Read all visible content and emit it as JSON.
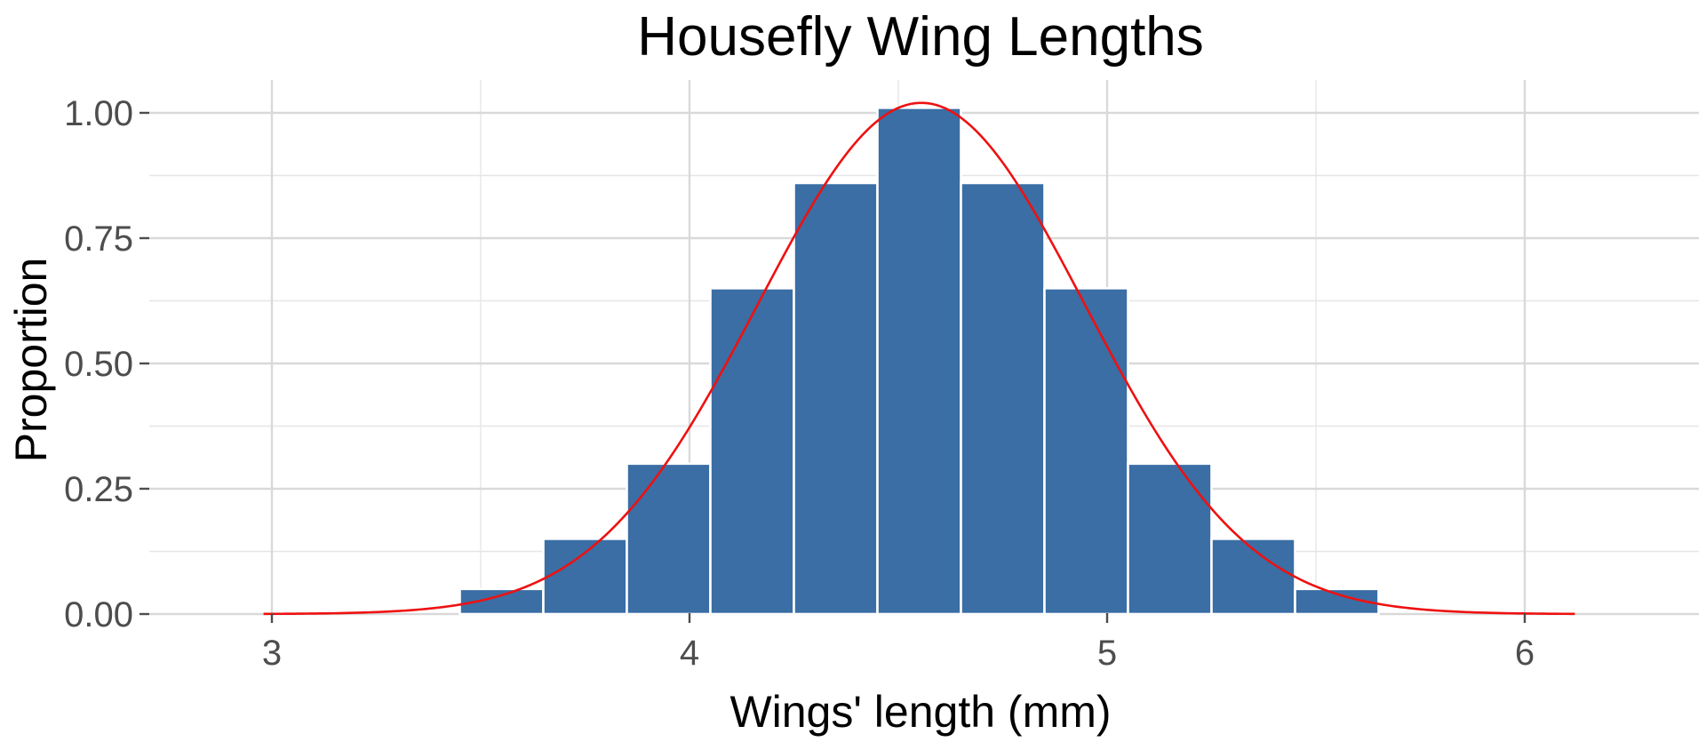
{
  "chart_data": {
    "type": "bar",
    "title": "Housefly Wing Lengths",
    "xlabel": "Wings' length (mm)",
    "ylabel": "Proportion",
    "xlim": [
      2.7,
      6.4
    ],
    "ylim": [
      0.0,
      1.05
    ],
    "x_ticks": [
      3,
      4,
      5,
      6
    ],
    "y_ticks": [
      0.0,
      0.25,
      0.5,
      0.75,
      1.0
    ],
    "y_tick_labels": [
      "0.00",
      "0.25",
      "0.50",
      "0.75",
      "1.00"
    ],
    "x_minor_ticks": [
      3.5,
      4.5,
      5.5
    ],
    "y_minor_ticks": [
      0.125,
      0.375,
      0.625,
      0.875
    ],
    "grid": true,
    "bin_width": 0.2,
    "bins": [
      {
        "center": 2.95,
        "value": 0.0
      },
      {
        "center": 3.15,
        "value": 0.0
      },
      {
        "center": 3.35,
        "value": 0.0
      },
      {
        "center": 3.55,
        "value": 0.05
      },
      {
        "center": 3.75,
        "value": 0.15
      },
      {
        "center": 3.95,
        "value": 0.3
      },
      {
        "center": 4.15,
        "value": 0.65
      },
      {
        "center": 4.35,
        "value": 0.86
      },
      {
        "center": 4.55,
        "value": 1.01
      },
      {
        "center": 4.75,
        "value": 0.86
      },
      {
        "center": 4.95,
        "value": 0.65
      },
      {
        "center": 5.15,
        "value": 0.3
      },
      {
        "center": 5.35,
        "value": 0.15
      },
      {
        "center": 5.55,
        "value": 0.05
      },
      {
        "center": 5.75,
        "value": 0.0
      },
      {
        "center": 5.95,
        "value": 0.0
      },
      {
        "center": 6.15,
        "value": 0.0
      }
    ],
    "density_curve": {
      "distribution": "normal",
      "mean": 4.555,
      "sd": 0.391,
      "x_range": [
        2.98,
        6.12
      ],
      "peak": 1.02
    },
    "colors": {
      "bar_fill": "#3a6ea5",
      "bar_outline": "#ffffff",
      "curve": "#ee1111"
    }
  }
}
